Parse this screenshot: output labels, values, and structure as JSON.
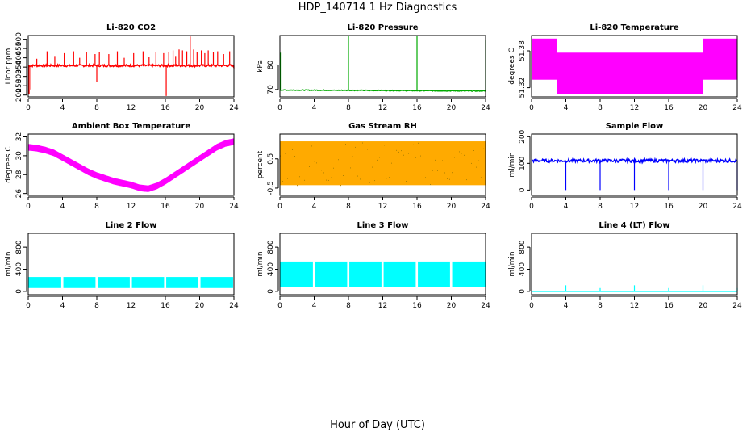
{
  "figure": {
    "title": "HDP_140714  1 Hz Diagnostics",
    "xlabel": "Hour of Day (UTC)"
  },
  "chart_data": [
    {
      "type": "line",
      "title": "Li-820 CO2",
      "ylabel": "Licor ppm",
      "color": "#ff0000",
      "xlim": [
        0,
        24
      ],
      "ylim": [
        190,
        520
      ],
      "yticks": [
        200,
        250,
        300,
        350,
        400,
        450,
        500
      ],
      "xticks": [
        0,
        4,
        8,
        12,
        16,
        20,
        24
      ],
      "baseline": 358,
      "noise": 6,
      "drift": "flat",
      "spikes": [
        [
          0.1,
          205
        ],
        [
          0.3,
          230
        ],
        [
          1.0,
          395
        ],
        [
          2.2,
          435
        ],
        [
          3.1,
          410
        ],
        [
          4.2,
          425
        ],
        [
          5.3,
          435
        ],
        [
          6.0,
          400
        ],
        [
          6.8,
          430
        ],
        [
          7.8,
          420
        ],
        [
          8.0,
          270
        ],
        [
          8.3,
          430
        ],
        [
          9.4,
          420
        ],
        [
          10.4,
          435
        ],
        [
          11.2,
          400
        ],
        [
          12.3,
          425
        ],
        [
          13.4,
          435
        ],
        [
          14.1,
          405
        ],
        [
          14.9,
          430
        ],
        [
          15.8,
          425
        ],
        [
          16.1,
          195
        ],
        [
          16.4,
          430
        ],
        [
          16.9,
          440
        ],
        [
          17.2,
          410
        ],
        [
          17.6,
          445
        ],
        [
          18.0,
          440
        ],
        [
          18.5,
          435
        ],
        [
          18.9,
          515
        ],
        [
          19.3,
          445
        ],
        [
          19.7,
          430
        ],
        [
          20.2,
          440
        ],
        [
          20.6,
          425
        ],
        [
          21.0,
          440
        ],
        [
          21.6,
          430
        ],
        [
          22.1,
          435
        ],
        [
          22.8,
          420
        ],
        [
          23.5,
          435
        ],
        [
          24.0,
          340
        ]
      ]
    },
    {
      "type": "line",
      "title": "Li-820 Pressure",
      "ylabel": "kPa",
      "color": "#00aa00",
      "xlim": [
        0,
        24
      ],
      "ylim": [
        67,
        92
      ],
      "yticks": [
        70,
        80
      ],
      "xticks": [
        0,
        4,
        8,
        12,
        16,
        20,
        24
      ],
      "baseline": 69.8,
      "noise": 0.15,
      "drift": "slightly-decreasing",
      "spikes": [
        [
          0.05,
          85
        ],
        [
          8.0,
          92
        ],
        [
          16.0,
          92
        ],
        [
          24.0,
          90
        ]
      ]
    },
    {
      "type": "band",
      "title": "Li-820 Temperature",
      "ylabel": "degrees C",
      "color": "#ff00ff",
      "xlim": [
        0,
        24
      ],
      "ylim": [
        51.305,
        51.405
      ],
      "yticks": [
        51.32,
        51.38
      ],
      "xticks": [
        0,
        4,
        8,
        12,
        16,
        20,
        24
      ],
      "segments": [
        {
          "x0": 0,
          "x1": 3.0,
          "low": 51.333,
          "high": 51.4
        },
        {
          "x0": 3.0,
          "x1": 20.0,
          "low": 51.31,
          "high": 51.377
        },
        {
          "x0": 20.0,
          "x1": 24,
          "low": 51.333,
          "high": 51.4
        }
      ]
    },
    {
      "type": "line",
      "title": "Ambient Box Temperature",
      "ylabel": "degrees C",
      "color": "#ff00ff",
      "xlim": [
        0,
        24
      ],
      "ylim": [
        25.8,
        32.3
      ],
      "yticks": [
        26,
        28,
        30,
        32
      ],
      "xticks": [
        0,
        4,
        8,
        12,
        16,
        20,
        24
      ],
      "x": [
        0,
        1,
        2,
        3,
        4,
        5,
        6,
        7,
        8,
        9,
        10,
        11,
        12,
        13,
        14,
        15,
        16,
        17,
        18,
        19,
        20,
        21,
        22,
        23,
        24
      ],
      "y": [
        30.9,
        30.8,
        30.6,
        30.3,
        29.8,
        29.3,
        28.8,
        28.3,
        27.9,
        27.6,
        27.3,
        27.1,
        26.9,
        26.6,
        26.5,
        26.8,
        27.3,
        27.9,
        28.5,
        29.1,
        29.7,
        30.3,
        30.9,
        31.3,
        31.5
      ],
      "band": 0.35
    },
    {
      "type": "band",
      "title": "Gas Stream RH",
      "ylabel": "percent",
      "color": "#ffaa00",
      "overlay": "#b08000",
      "xlim": [
        0,
        24
      ],
      "ylim": [
        -0.75,
        1.35
      ],
      "yticks": [
        -0.5,
        0.5
      ],
      "xticks": [
        0,
        4,
        8,
        12,
        16,
        20,
        24
      ],
      "segments": [
        {
          "x0": 0,
          "x1": 24,
          "low": -0.4,
          "high": 1.1
        }
      ]
    },
    {
      "type": "line",
      "title": "Sample Flow",
      "ylabel": "ml/min",
      "color": "#0000ff",
      "xlim": [
        0,
        24
      ],
      "ylim": [
        -20,
        210
      ],
      "yticks": [
        0,
        100,
        200
      ],
      "xticks": [
        0,
        4,
        8,
        12,
        16,
        20,
        24
      ],
      "baseline": 110,
      "noise": 6,
      "drift": "flat",
      "spikes": [
        [
          4.0,
          0
        ],
        [
          8.0,
          0
        ],
        [
          12.0,
          0
        ],
        [
          16.0,
          0
        ],
        [
          20.0,
          0
        ],
        [
          24.0,
          0
        ]
      ]
    },
    {
      "type": "band",
      "title": "Line 2 Flow",
      "ylabel": "ml/min",
      "color": "#00ffff",
      "xlim": [
        0,
        24
      ],
      "ylim": [
        -60,
        1050
      ],
      "yticks": [
        0,
        400,
        800
      ],
      "xticks": [
        0,
        4,
        8,
        12,
        16,
        20,
        24
      ],
      "segments": [
        {
          "x0": 0.0,
          "x1": 3.85,
          "low": 60,
          "high": 260
        },
        {
          "x0": 4.1,
          "x1": 7.85,
          "low": 60,
          "high": 260
        },
        {
          "x0": 8.1,
          "x1": 11.85,
          "low": 60,
          "high": 260
        },
        {
          "x0": 12.1,
          "x1": 15.85,
          "low": 60,
          "high": 260
        },
        {
          "x0": 16.1,
          "x1": 19.85,
          "low": 60,
          "high": 260
        },
        {
          "x0": 20.1,
          "x1": 23.9,
          "low": 60,
          "high": 260
        }
      ]
    },
    {
      "type": "band",
      "title": "Line 3 Flow",
      "ylabel": "ml/min",
      "color": "#00ffff",
      "xlim": [
        0,
        24
      ],
      "ylim": [
        -60,
        1050
      ],
      "yticks": [
        0,
        400,
        800
      ],
      "xticks": [
        0,
        4,
        8,
        12,
        16,
        20,
        24
      ],
      "segments": [
        {
          "x0": 0.0,
          "x1": 3.85,
          "low": 80,
          "high": 540
        },
        {
          "x0": 4.1,
          "x1": 7.85,
          "low": 80,
          "high": 540
        },
        {
          "x0": 8.1,
          "x1": 11.85,
          "low": 80,
          "high": 540
        },
        {
          "x0": 12.1,
          "x1": 15.85,
          "low": 80,
          "high": 540
        },
        {
          "x0": 16.1,
          "x1": 19.85,
          "low": 80,
          "high": 540
        },
        {
          "x0": 20.1,
          "x1": 24.0,
          "low": 80,
          "high": 540
        }
      ]
    },
    {
      "type": "line",
      "title": "Line 4 (LT) Flow",
      "ylabel": "ml/min",
      "color": "#00ffff",
      "xlim": [
        0,
        24
      ],
      "ylim": [
        -60,
        1050
      ],
      "yticks": [
        0,
        400,
        800
      ],
      "xticks": [
        0,
        4,
        8,
        12,
        16,
        20,
        24
      ],
      "baseline": 0,
      "noise": 0,
      "drift": "flat",
      "spikes": [
        [
          4.0,
          110
        ],
        [
          8.0,
          60
        ],
        [
          12.0,
          110
        ],
        [
          16.0,
          60
        ],
        [
          20.0,
          110
        ],
        [
          24.0,
          60
        ]
      ]
    }
  ]
}
